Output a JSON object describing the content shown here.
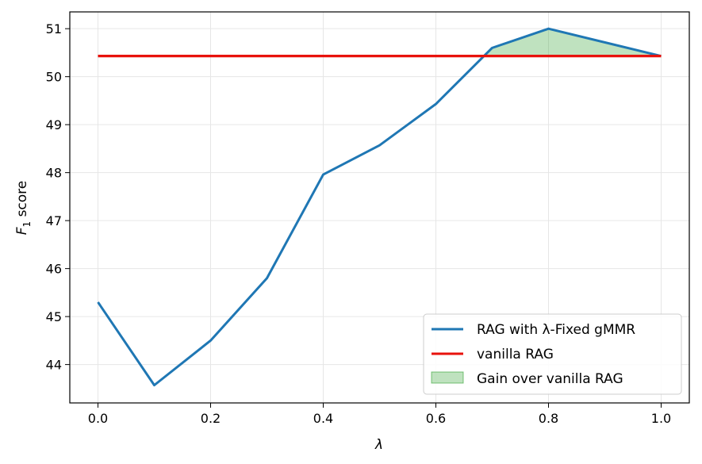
{
  "chart_data": {
    "type": "line",
    "xlabel": "λ",
    "ylabel_main": "F",
    "ylabel_sub": "1",
    "ylabel_rest": " score",
    "xlim": [
      -0.05,
      1.05
    ],
    "ylim": [
      43.2,
      51.35
    ],
    "x_ticks": [
      0.0,
      0.2,
      0.4,
      0.6,
      0.8,
      1.0
    ],
    "x_tick_labels": [
      "0.0",
      "0.2",
      "0.4",
      "0.6",
      "0.8",
      "1.0"
    ],
    "y_ticks": [
      44,
      45,
      46,
      47,
      48,
      49,
      50,
      51
    ],
    "y_tick_labels": [
      "44",
      "45",
      "46",
      "47",
      "48",
      "49",
      "50",
      "51"
    ],
    "grid": true,
    "legend_position": "lower-right",
    "series": [
      {
        "name": "RAG with λ-Fixed gMMR",
        "color": "#1f77b4",
        "x": [
          0.0,
          0.1,
          0.2,
          0.3,
          0.4,
          0.5,
          0.6,
          0.7,
          0.8,
          1.0
        ],
        "y": [
          45.3,
          43.57,
          44.5,
          45.8,
          47.96,
          48.57,
          49.43,
          50.6,
          51.0,
          50.43
        ]
      },
      {
        "name": "vanilla RAG",
        "color": "#e8120c",
        "x": [
          0.0,
          1.0
        ],
        "y": [
          50.43,
          50.43
        ]
      }
    ],
    "fill": {
      "name": "Gain over vanilla RAG",
      "color": "#2ca02c",
      "opacity": 0.3,
      "baseline": 50.43
    }
  }
}
